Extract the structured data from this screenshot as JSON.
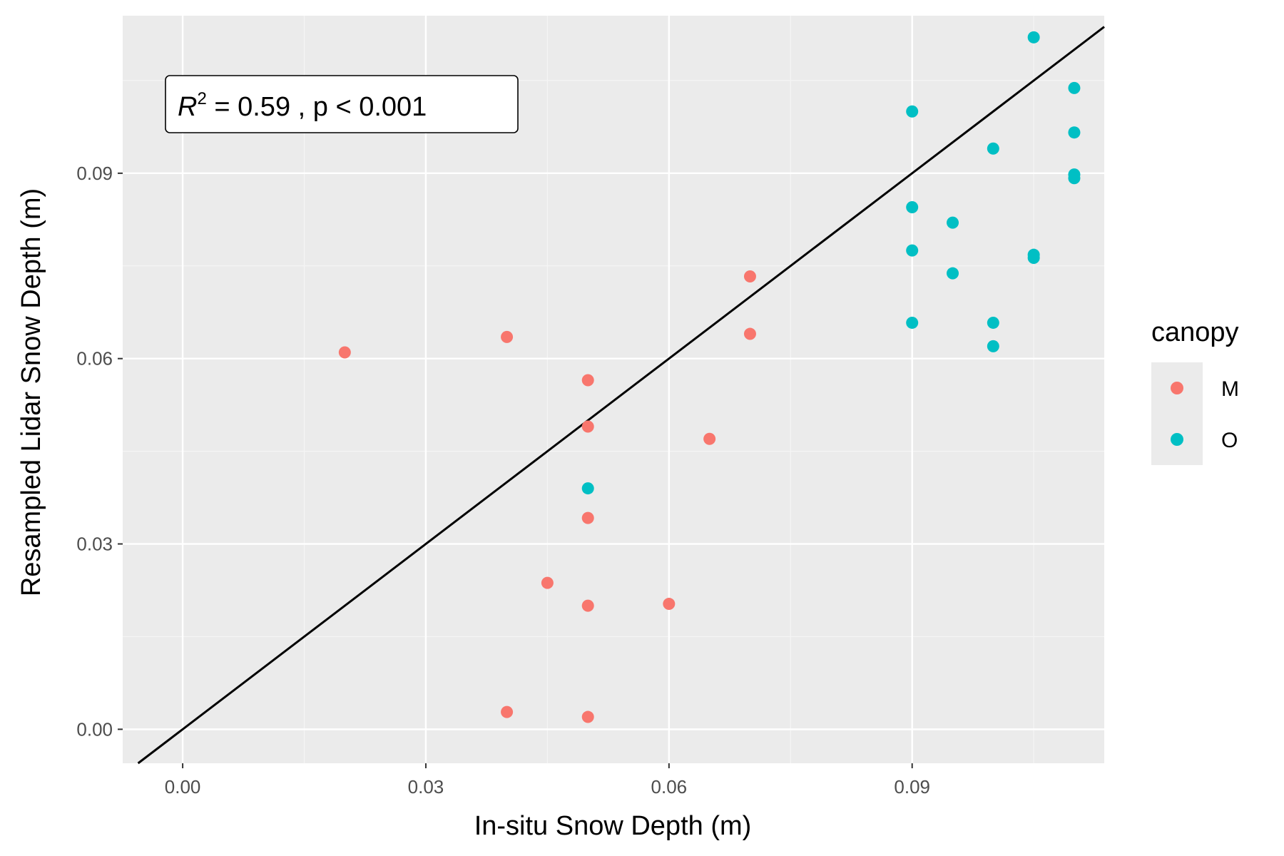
{
  "colors": {
    "panel_bg": "#ebebeb",
    "grid_major": "#ffffff",
    "grid_minor": "#f5f5f5",
    "series_M": "#f8766d",
    "series_O": "#00bfc4",
    "line": "#000000"
  },
  "annotation": {
    "r_symbol": "R",
    "r_exp": "2",
    "text": " = 0.59 ,  p < 0.001"
  },
  "chart_data": {
    "type": "scatter",
    "title": "",
    "xlabel": "In-situ Snow Depth (m)",
    "ylabel": "Resampled Lidar Snow Depth (m)",
    "xlim": [
      -0.0074,
      0.1137
    ],
    "ylim": [
      -0.0055,
      0.1155
    ],
    "x_ticks": [
      0.0,
      0.03,
      0.06,
      0.09
    ],
    "y_ticks": [
      0.0,
      0.03,
      0.06,
      0.09
    ],
    "x_tick_labels": [
      "0.00",
      "0.03",
      "0.06",
      "0.09"
    ],
    "y_tick_labels": [
      "0.00",
      "0.03",
      "0.06",
      "0.09"
    ],
    "grid": true,
    "legend": {
      "title": "canopy",
      "position": "right"
    },
    "reference_line": {
      "slope": 1,
      "intercept": 0
    },
    "series": [
      {
        "name": "M",
        "color": "#f8766d",
        "points": [
          [
            0.02,
            0.061
          ],
          [
            0.04,
            0.0635
          ],
          [
            0.04,
            0.0028
          ],
          [
            0.045,
            0.0237
          ],
          [
            0.05,
            0.0565
          ],
          [
            0.05,
            0.049
          ],
          [
            0.05,
            0.0342
          ],
          [
            0.05,
            0.02
          ],
          [
            0.05,
            0.002
          ],
          [
            0.06,
            0.0203
          ],
          [
            0.065,
            0.047
          ],
          [
            0.07,
            0.0733
          ],
          [
            0.07,
            0.064
          ]
        ]
      },
      {
        "name": "O",
        "color": "#00bfc4",
        "points": [
          [
            0.05,
            0.039
          ],
          [
            0.09,
            0.1
          ],
          [
            0.09,
            0.0845
          ],
          [
            0.09,
            0.0775
          ],
          [
            0.09,
            0.0658
          ],
          [
            0.095,
            0.082
          ],
          [
            0.095,
            0.0738
          ],
          [
            0.1,
            0.094
          ],
          [
            0.1,
            0.0658
          ],
          [
            0.1,
            0.062
          ],
          [
            0.105,
            0.112
          ],
          [
            0.105,
            0.0768
          ],
          [
            0.105,
            0.0763
          ],
          [
            0.11,
            0.1038
          ],
          [
            0.11,
            0.0966
          ],
          [
            0.11,
            0.0898
          ],
          [
            0.11,
            0.0892
          ]
        ]
      }
    ]
  }
}
